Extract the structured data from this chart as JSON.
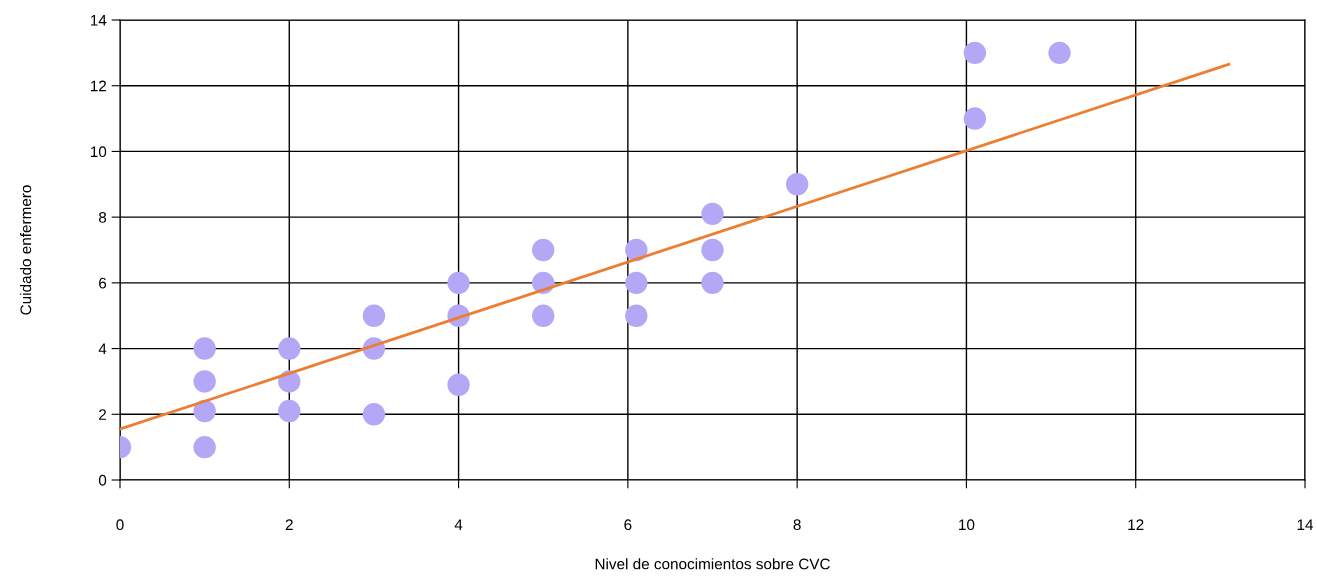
{
  "chart_data": {
    "type": "scatter",
    "xlabel": "Nivel de conocimientos sobre CVC",
    "ylabel": "Cuidado enfermero",
    "xlim": [
      0,
      14
    ],
    "ylim": [
      0,
      14
    ],
    "xticks": [
      0,
      2,
      4,
      6,
      8,
      10,
      12,
      14
    ],
    "yticks": [
      0,
      2,
      4,
      6,
      8,
      10,
      12,
      14
    ],
    "grid": true,
    "marker": "circle",
    "series": [
      {
        "color": "#b4a7f5",
        "x": [
          0,
          1,
          1,
          1,
          1,
          2,
          2,
          2,
          3,
          3,
          3,
          4,
          4,
          4,
          5,
          5,
          5,
          6.1,
          6.1,
          6.1,
          7,
          7,
          7,
          8,
          10.1,
          10.1,
          11.1
        ],
        "values": [
          1,
          4,
          3,
          2.1,
          1,
          4,
          3,
          2.1,
          5,
          4,
          2,
          6,
          5,
          2.9,
          7,
          6,
          5,
          7,
          6,
          5,
          8.1,
          7,
          6,
          9,
          13,
          11,
          13
        ]
      },
      {
        "type": "line",
        "color": "#ed7d31",
        "marker": "none",
        "x": [
          0,
          13.1
        ],
        "values": [
          1.55,
          12.65
        ]
      }
    ]
  }
}
